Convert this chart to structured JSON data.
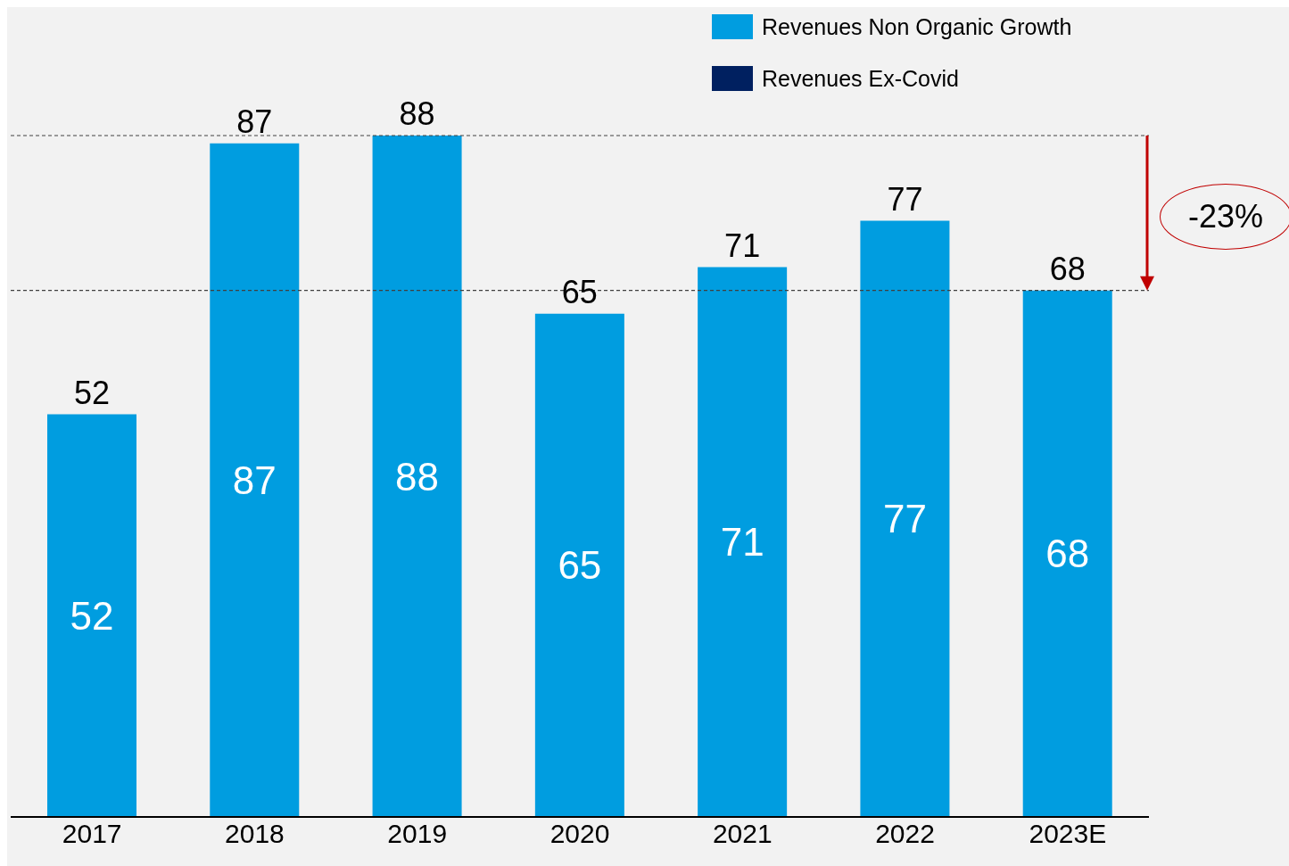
{
  "chart_data": {
    "type": "bar",
    "stacked": true,
    "categories": [
      "2017",
      "2018",
      "2019",
      "2020",
      "2021",
      "2022",
      "2023E"
    ],
    "series": [
      {
        "name": "Revenues Non Organic Growth",
        "color": "#009de0",
        "values": [
          52,
          87,
          88,
          65,
          71,
          77,
          68
        ]
      },
      {
        "name": "Revenues Ex-Covid",
        "color": "#002060",
        "values": [
          null,
          null,
          null,
          null,
          null,
          null,
          null
        ]
      }
    ],
    "data_labels": true,
    "totals": [
      "52",
      "87",
      "88",
      "65",
      "71",
      "77",
      "68"
    ],
    "legend": "top right",
    "grid": false,
    "ref_lines": [
      {
        "axis": "y",
        "value": 88,
        "color": "#404040",
        "line_style": "dashed"
      },
      {
        "axis": "y",
        "value": 68,
        "color": "#404040",
        "line_style": "dashed"
      }
    ],
    "annotations": [
      "-23%"
    ]
  }
}
